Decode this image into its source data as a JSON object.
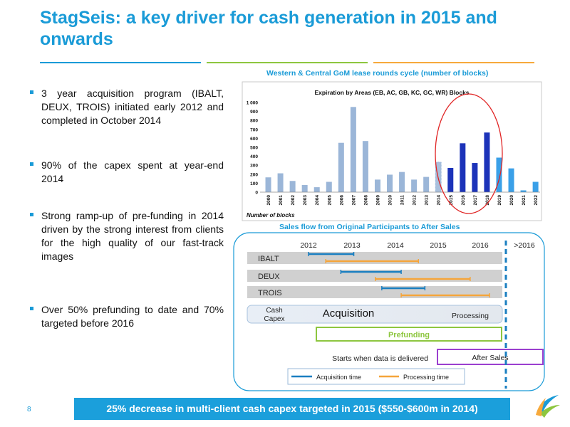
{
  "title": "StagSeis: a key driver for cash generation in 2015 and onwards",
  "rules": [
    {
      "color": "#1a9bd7"
    },
    {
      "color": "#8dc63f"
    },
    {
      "color": "#f7a93b"
    }
  ],
  "bullets": [
    "3 year acquisition program (IBALT, DEUX, TROIS) initiated early 2012 and completed in October 2014",
    "90% of the capex spent at year-end 2014",
    "Strong ramp-up of pre-funding in 2014 driven by the strong interest from clients for the high quality of our fast-track images",
    "Over 50% prefunding to date and 70% targeted before 2016"
  ],
  "chart_title": "Western & Central GoM lease rounds cycle (number of blocks)",
  "chart_data": {
    "type": "bar",
    "title": "Expiration by Areas (EB, AC, GB, KC, GC, WR) Blocks",
    "xlabel": "",
    "ylabel": "Number of blocks",
    "ylim": [
      0,
      1000
    ],
    "yticks": [
      "0",
      "100",
      "200",
      "300",
      "400",
      "500",
      "600",
      "700",
      "800",
      "900",
      "1 000"
    ],
    "categories": [
      "2000",
      "2001",
      "2002",
      "2003",
      "2004",
      "2005",
      "2006",
      "2007",
      "2008",
      "2009",
      "2010",
      "2011",
      "2012",
      "2013",
      "2014",
      "2015",
      "2016",
      "2017",
      "2018",
      "2019",
      "2020",
      "2021",
      "2022"
    ],
    "values": [
      165,
      210,
      125,
      80,
      55,
      115,
      550,
      950,
      570,
      140,
      195,
      225,
      140,
      170,
      335,
      270,
      545,
      325,
      665,
      385,
      265,
      20,
      115
    ],
    "colors": {
      "light": "#9bb6d8",
      "dark": "#1c33b9",
      "bright": "#3aa0e8"
    },
    "bar_styles": [
      "light",
      "light",
      "light",
      "light",
      "light",
      "light",
      "light",
      "light",
      "light",
      "light",
      "light",
      "light",
      "light",
      "light",
      "light",
      "dark",
      "dark",
      "dark",
      "dark",
      "bright",
      "bright",
      "bright",
      "bright"
    ],
    "grid": false,
    "highlight_color": "#e02424"
  },
  "gantt_title": "Sales flow from Original Participants to After Sales",
  "gantt": {
    "years": [
      "2012",
      "2013",
      "2014",
      "2015",
      "2016",
      ">2016"
    ],
    "rows": [
      "IBALT",
      "DEUX",
      "TROIS"
    ],
    "cash_capex": [
      "Cash",
      "Capex"
    ],
    "acquisition": "Acquisition",
    "processing": "Processing",
    "prefunding": "Prefunding",
    "starts": "Starts when data is delivered",
    "after_sales": "After Sales",
    "legend": [
      "Acquisition time",
      "Processing time"
    ],
    "colors": {
      "acquisition": "#1a7fc1",
      "processing": "#f5a53b",
      "prefunding": "#8dc63f",
      "after_sales": "#9b3fcf",
      "dashed": "#1a7fc1"
    }
  },
  "footer": "25% decrease in multi-client cash capex targeted in 2015 ($550-$600m in 2014)",
  "page_number": "8"
}
